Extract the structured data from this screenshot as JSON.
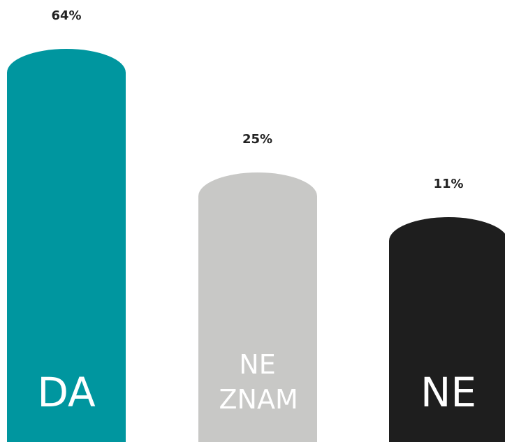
{
  "chart_data": {
    "type": "bar",
    "categories": [
      "DA",
      "NE ZNAM",
      "NE"
    ],
    "values": [
      64,
      25,
      11
    ],
    "value_labels": [
      "64%",
      "25%",
      "11%"
    ],
    "colors": [
      "#00969f",
      "#c8c8c6",
      "#1e1e1e"
    ],
    "ylim": [
      -60,
      64
    ]
  }
}
